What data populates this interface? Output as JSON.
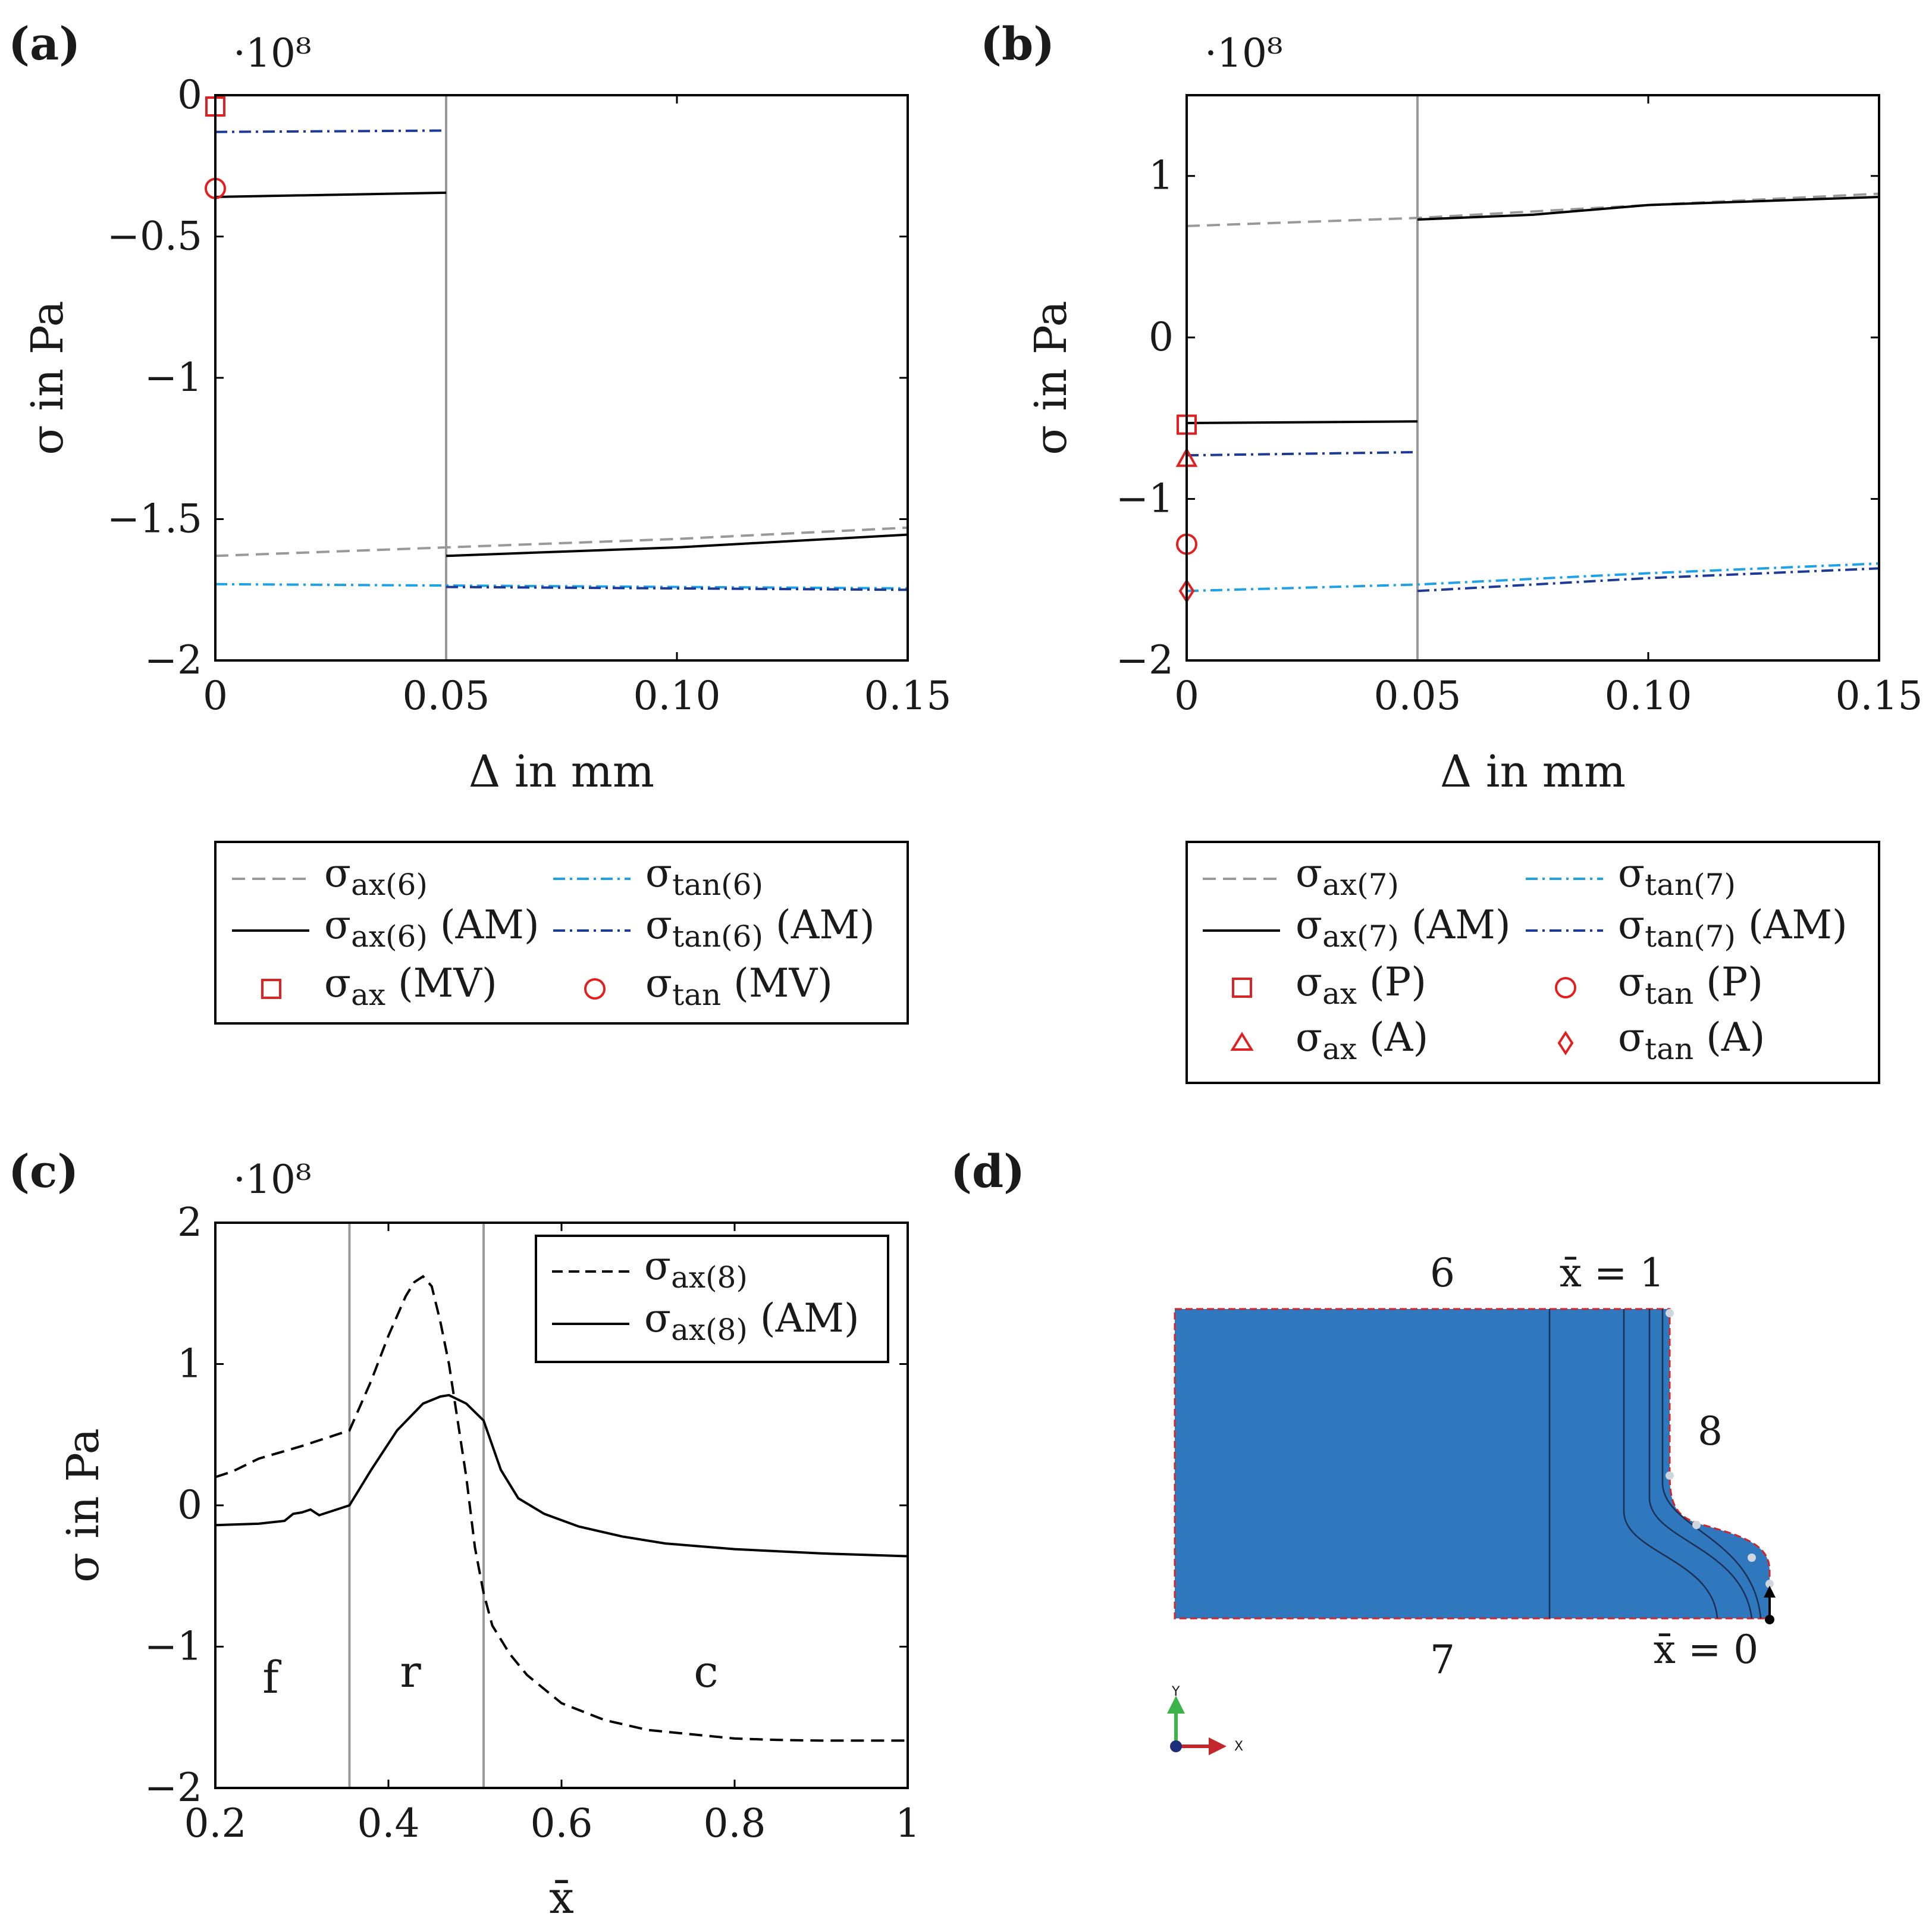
{
  "panels": {
    "a": {
      "label": "(a)",
      "exponent": "·10⁸",
      "xlabel": "Δ in mm",
      "ylabel": "σ in Pa",
      "xticks": [
        "0",
        "0.05",
        "0.10",
        "0.15"
      ],
      "yticks": [
        "0",
        "−0.5",
        "−1",
        "−1.5",
        "−2"
      ],
      "legend": [
        {
          "sym": "σ",
          "sub": "ax(6)",
          "suffix": ""
        },
        {
          "sym": "σ",
          "sub": "tan(6)",
          "suffix": ""
        },
        {
          "sym": "σ",
          "sub": "ax(6)",
          "suffix": " (AM)"
        },
        {
          "sym": "σ",
          "sub": "tan(6)",
          "suffix": " (AM)"
        },
        {
          "sym": "σ",
          "sub": "ax",
          "suffix": " (MV)"
        },
        {
          "sym": "σ",
          "sub": "tan",
          "suffix": " (MV)"
        }
      ]
    },
    "b": {
      "label": "(b)",
      "exponent": "·10⁸",
      "xlabel": "Δ in mm",
      "ylabel": "σ in Pa",
      "xticks": [
        "0",
        "0.05",
        "0.10",
        "0.15"
      ],
      "yticks": [
        "1",
        "0",
        "−1",
        "−2"
      ],
      "legend": [
        {
          "sym": "σ",
          "sub": "ax(7)",
          "suffix": ""
        },
        {
          "sym": "σ",
          "sub": "tan(7)",
          "suffix": ""
        },
        {
          "sym": "σ",
          "sub": "ax(7)",
          "suffix": " (AM)"
        },
        {
          "sym": "σ",
          "sub": "tan(7)",
          "suffix": " (AM)"
        },
        {
          "sym": "σ",
          "sub": "ax",
          "suffix": " (P)"
        },
        {
          "sym": "σ",
          "sub": "tan",
          "suffix": " (P)"
        },
        {
          "sym": "σ",
          "sub": "ax",
          "suffix": " (A)"
        },
        {
          "sym": "σ",
          "sub": "tan",
          "suffix": " (A)"
        }
      ]
    },
    "c": {
      "label": "(c)",
      "exponent": "·10⁸",
      "xlabel": "x̄",
      "ylabel": "σ in Pa",
      "xticks": [
        "0.2",
        "0.4",
        "0.6",
        "0.8",
        "1"
      ],
      "yticks": [
        "2",
        "1",
        "0",
        "−1",
        "−2"
      ],
      "regions": [
        "f",
        "r",
        "c"
      ],
      "legend": [
        {
          "sym": "σ",
          "sub": "ax(8)",
          "suffix": ""
        },
        {
          "sym": "σ",
          "sub": "ax(8)",
          "suffix": " (AM)"
        }
      ]
    },
    "d": {
      "label": "(d)",
      "edge_labels": [
        "6",
        "7",
        "8"
      ],
      "x1_label": "x̄ = 1",
      "x0_label": "x̄ = 0",
      "axis_x": "X",
      "axis_y": "Y",
      "colors": {
        "fill": "#2f78bd",
        "boundary": "#d0262b"
      }
    }
  },
  "chart_data": [
    {
      "panel": "a",
      "type": "line",
      "xlabel": "Δ in mm",
      "ylabel": "σ in Pa",
      "y_scale": "1e8",
      "xlim": [
        0,
        0.15
      ],
      "ylim": [
        -2.0,
        0.0
      ],
      "vline_x": 0.05,
      "grid": false,
      "legend_position": "below",
      "series": [
        {
          "name": "σax(6)",
          "style": "dashed",
          "color": "#999999",
          "x": [
            0,
            0.05,
            0.1,
            0.15
          ],
          "y": [
            -1.63,
            -1.6,
            -1.57,
            -1.53
          ]
        },
        {
          "name": "σtan(6)",
          "style": "dashdot",
          "color": "#1ea1e6",
          "x": [
            0,
            0.05,
            0.1,
            0.15
          ],
          "y": [
            -1.73,
            -1.735,
            -1.74,
            -1.745
          ]
        },
        {
          "name": "σax(6) (AM)",
          "style": "solid",
          "color": "#000000",
          "x": [
            0,
            0.05,
            null,
            0.05,
            0.1,
            0.15
          ],
          "y": [
            -0.36,
            -0.345,
            null,
            -1.63,
            -1.6,
            -1.555
          ]
        },
        {
          "name": "σtan(6) (AM)",
          "style": "dashdot",
          "color": "#1d3a96",
          "x": [
            0,
            0.05,
            null,
            0.05,
            0.1,
            0.15
          ],
          "y": [
            -0.13,
            -0.125,
            null,
            -1.74,
            -1.745,
            -1.75
          ]
        }
      ],
      "markers": [
        {
          "name": "σax (MV)",
          "shape": "square",
          "x": 0,
          "y": -0.04
        },
        {
          "name": "σtan (MV)",
          "shape": "circle",
          "x": 0,
          "y": -0.33
        }
      ]
    },
    {
      "panel": "b",
      "type": "line",
      "xlabel": "Δ in mm",
      "ylabel": "σ in Pa",
      "y_scale": "1e8",
      "xlim": [
        0,
        0.15
      ],
      "ylim": [
        -2.0,
        1.5
      ],
      "vline_x": 0.05,
      "grid": false,
      "legend_position": "below",
      "series": [
        {
          "name": "σax(7)",
          "style": "dashed",
          "color": "#999999",
          "x": [
            0,
            0.05,
            0.1,
            0.15
          ],
          "y": [
            0.69,
            0.74,
            0.82,
            0.89
          ]
        },
        {
          "name": "σtan(7)",
          "style": "dashdot",
          "color": "#1ea1e6",
          "x": [
            0,
            0.05,
            0.1,
            0.15
          ],
          "y": [
            -1.57,
            -1.53,
            -1.46,
            -1.4
          ]
        },
        {
          "name": "σax(7) (AM)",
          "style": "solid",
          "color": "#000000",
          "x": [
            0,
            0.05,
            null,
            0.05,
            0.075,
            0.1,
            0.15
          ],
          "y": [
            -0.53,
            -0.52,
            null,
            0.73,
            0.76,
            0.82,
            0.87
          ]
        },
        {
          "name": "σtan(7) (AM)",
          "style": "dashdot",
          "color": "#1d3a96",
          "x": [
            0,
            0.05,
            null,
            0.05,
            0.1,
            0.15
          ],
          "y": [
            -0.73,
            -0.71,
            null,
            -1.57,
            -1.49,
            -1.43
          ]
        }
      ],
      "markers": [
        {
          "name": "σax (P)",
          "shape": "square",
          "x": 0,
          "y": -0.54
        },
        {
          "name": "σtan (P)",
          "shape": "circle",
          "x": 0,
          "y": -1.28
        },
        {
          "name": "σax (A)",
          "shape": "triangle",
          "x": 0,
          "y": -0.75
        },
        {
          "name": "σtan (A)",
          "shape": "diamond",
          "x": 0,
          "y": -1.57
        }
      ]
    },
    {
      "panel": "c",
      "type": "line",
      "xlabel": "x̄",
      "ylabel": "σ in Pa",
      "y_scale": "1e8",
      "xlim": [
        0.2,
        1.0
      ],
      "ylim": [
        -2.0,
        2.0
      ],
      "vlines_x": [
        0.355,
        0.51
      ],
      "grid": false,
      "legend_position": "top-right",
      "series": [
        {
          "name": "σax(8)",
          "style": "dashed",
          "color": "#000000",
          "x": [
            0.2,
            0.22,
            0.25,
            0.3,
            0.33,
            0.355,
            0.38,
            0.4,
            0.42,
            0.43,
            0.44,
            0.45,
            0.46,
            0.47,
            0.48,
            0.49,
            0.5,
            0.51,
            0.52,
            0.54,
            0.56,
            0.6,
            0.65,
            0.7,
            0.75,
            0.8,
            0.85,
            0.9,
            1.0
          ],
          "y": [
            0.2,
            0.24,
            0.33,
            0.42,
            0.48,
            0.53,
            0.88,
            1.2,
            1.48,
            1.58,
            1.62,
            1.55,
            1.3,
            1.0,
            0.6,
            0.2,
            -0.3,
            -0.62,
            -0.85,
            -1.05,
            -1.2,
            -1.4,
            -1.52,
            -1.59,
            -1.62,
            -1.65,
            -1.66,
            -1.665,
            -1.665
          ]
        },
        {
          "name": "σax(8) (AM)",
          "style": "solid",
          "color": "#000000",
          "x": [
            0.2,
            0.25,
            0.28,
            0.29,
            0.3,
            0.31,
            0.32,
            0.34,
            0.355,
            0.38,
            0.41,
            0.44,
            0.46,
            0.47,
            0.49,
            0.51,
            0.53,
            0.55,
            0.58,
            0.62,
            0.67,
            0.72,
            0.8,
            0.9,
            1.0
          ],
          "y": [
            -0.14,
            -0.13,
            -0.11,
            -0.06,
            -0.05,
            -0.03,
            -0.07,
            -0.03,
            0.0,
            0.25,
            0.53,
            0.72,
            0.77,
            0.78,
            0.72,
            0.6,
            0.25,
            0.05,
            -0.06,
            -0.15,
            -0.22,
            -0.27,
            -0.31,
            -0.34,
            -0.36
          ]
        }
      ]
    }
  ]
}
